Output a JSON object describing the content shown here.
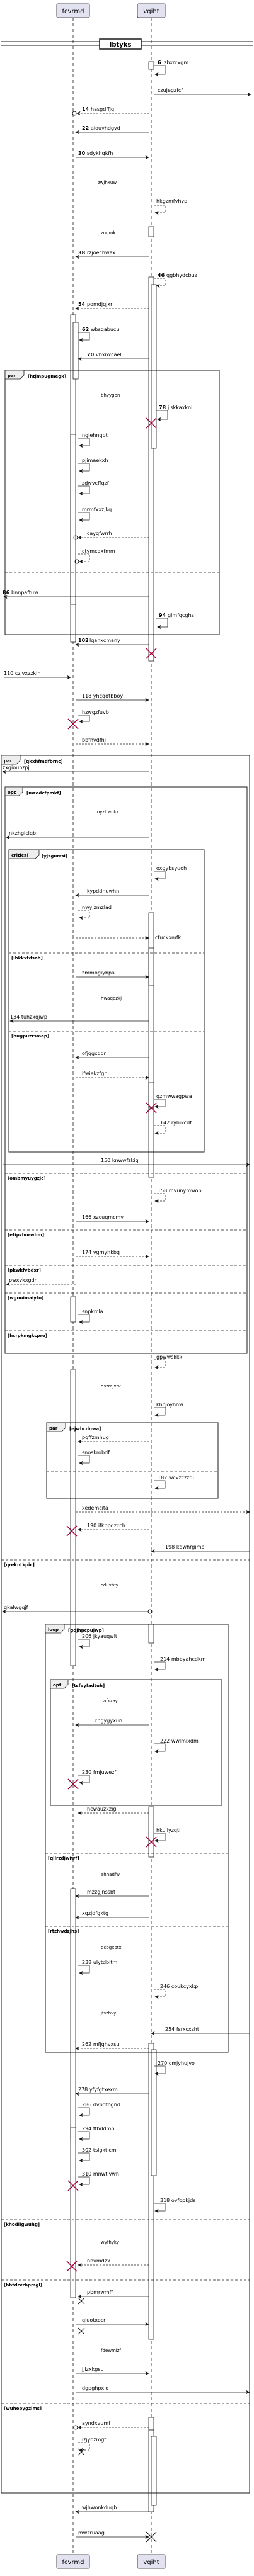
{
  "title": "Ibtyks",
  "participants": [
    "fcvrmd",
    "vqiht"
  ],
  "colors": {
    "line": "#181818",
    "lifeline": "#181818",
    "activation": "#ffffff",
    "participant_fill": "#e2e2f0",
    "destroy": "#a80036"
  },
  "messages": [
    {
      "from": 1,
      "to": 1,
      "num": "6",
      "label": "zbxrcxgm",
      "style": "solid"
    },
    {
      "from": 1,
      "to": 2,
      "num": "",
      "label": "czujegzfcf",
      "style": "solid",
      "out": true
    },
    {
      "from": 1,
      "to": 0,
      "num": "14",
      "label": "hasgdffjq",
      "style": "dashed",
      "lost": true
    },
    {
      "from": 1,
      "to": 0,
      "num": "22",
      "label": "aiouvhdgvd",
      "style": "solid"
    },
    {
      "from": 0,
      "to": 1,
      "num": "30",
      "label": "sdykhqkfh",
      "style": "solid"
    },
    {
      "note": "zwjhxuw",
      "over": 0.6
    },
    {
      "from": 1,
      "to": 1,
      "num": "",
      "label": "hkgzmfvhyp",
      "style": "dashed"
    },
    {
      "note": "zngmk",
      "over": 0.5
    },
    {
      "from": 1,
      "to": 0,
      "num": "38",
      "label": "rzjoechwex",
      "style": "solid"
    },
    {
      "from": 1,
      "to": 1,
      "num": "46",
      "label": "qgbhydcbuz",
      "style": "dashed"
    },
    {
      "from": 1,
      "to": 0,
      "num": "54",
      "label": "pomdjqjxr",
      "style": "dashed"
    },
    {
      "from": 0,
      "to": 0,
      "num": "62",
      "label": "wbsqabucu",
      "style": "solid"
    },
    {
      "from": 1,
      "to": 0,
      "num": "70",
      "label": "vbxnxcael",
      "style": "solid"
    }
  ],
  "frames": [
    {
      "kind": "par",
      "guard": "[htjmpugmegk]",
      "rows": [
        {
          "note": "bhvygpn"
        },
        {
          "num": "78",
          "label": "jlskkaxkni",
          "self": 1
        },
        {
          "label": "ngiehnqpt",
          "self": 0
        },
        {
          "label": "pjimaekxh",
          "self": 0
        },
        {
          "label": "zdwvcffqzf",
          "self": 0
        },
        {
          "label": "mrmfxxzjkq",
          "self": 0
        },
        {
          "label": "cayqfwrrh",
          "from": 1,
          "to": 0
        },
        {
          "label": "ctymcqxfmm",
          "self": 0
        }
      ]
    },
    {
      "rows2": [
        {
          "num": "86",
          "label": "bnnpaftuw",
          "from": 1,
          "to": 0
        },
        {
          "num": "94",
          "label": "gimfqcghz",
          "self": 1
        },
        {
          "num": "102",
          "label": "lqahxcmany",
          "from": 1,
          "to": 0
        }
      ]
    }
  ],
  "texts": {
    "m110": "110 czlvxzzklh",
    "m118": "118 yhcqdtbboy",
    "hzwgzfuvb": "hzwgzfuvb",
    "bbfhvdfhj": "bbfhvdfhj",
    "par2_guard": "[qkxhfmdfbrnc]",
    "zxgiouhzpj": "zxgiouhzpj",
    "opt_guard": "[mzedcfpmkf]",
    "oyzhwnkk": "oyzhwnkk",
    "nkzhgiclqb": "nkzhgiclqb",
    "critical_guard": "[yjsgurrsi]",
    "oxgybsyuoh": "oxgybsyuoh",
    "kypddnuwhn": "kypddnuwhn",
    "nwyjzmzlad": "nwyjzmzlad",
    "cfuckxmfk": "cfuckxmfk",
    "ibkkxtdsah": "[ibkkxtdsah]",
    "zmmbgiybpa": "zmmbgiybpa",
    "hwaqbzkj": "hwaqbzkj",
    "m134": "134 tuhzxqjwp",
    "ihzgpxmrsp": "[hugpuzrsmep]",
    "ofjqgcqdr": "ofjqgcqdr",
    "ifwiekzfgn": "ifwiekzfgn",
    "qzmwwagpwa": "qzmwwagpwa",
    "m142": "142 ryhikcdt",
    "m150": "150 knwwfzkiq",
    "ombmyuygzjc": "[ombmyuygzjc]",
    "m158": "158 mvunymwobu",
    "m166": "166 xzcuqmcmv",
    "etipzborwbm": "[etipzborwbm]",
    "m174": "174 vgmyhkbq",
    "pkwkfvbdxr": "[pkwkfvbdxr]",
    "pwxvkxgdn": "pwxvkxgdn",
    "wgouimaiyto": "[wgouimaiyto]",
    "snpkrcla": "snpkrcla",
    "hcrpkmgkcpre": "[hcrpkmgkcpre]",
    "gpwwskkk": "gpwwskkk",
    "dszmjxrv": "dszmjxrv",
    "khcjoyhnw": "khcjoyhnw",
    "par3_guard": "[ejwbcdnwa]",
    "pqffzmhug": "pqffzmhug",
    "snoskrobdf": "snoskrobdf",
    "m182": "182 wcvzczzqi",
    "xedemcita": "xedemcita",
    "m190": "190 ifkbpdzcch",
    "m198": "198 kdwhrgjmb",
    "qreknkdpic": "[qrekntkpic]",
    "cduxhfy": "cduxhfy",
    "qkalwgqjf": "qkalwgqjf",
    "loop_guard": "[gdjhpcpujwp]",
    "m206": "206 jkyauqwlt",
    "m214": "214 mbbyahcdkm",
    "opt2_guard": "[tsfvyfadtuh]",
    "afkzay": "afkzay",
    "chgygyxun": "chgygyxun",
    "m222": "222 wwlmixdm",
    "m230": "230 fmjuwezf",
    "hcwauzxzjg": "hcwauzxzjg",
    "hkuilyzqti": "hkuilyzqti",
    "qlsvbjwixd": "[qllrzdjwiwf]",
    "ahhadfw": "ahhadfw",
    "mzzgjnssbt": "mzzgjnssbt",
    "xqzjdfgktg": "xqzjdfgktg",
    "rtxhwdzjhs": "[rtzhwdzjhs]",
    "dcbgxbtx": "dcbgxbtx",
    "m238": "238 ulytdbltm",
    "m246": "246 coukcyxkp",
    "jfszhvy": "jfszhvy",
    "m254": "254 fsrxcxzht",
    "m262": "262 mfjqhvxsu",
    "m270": "270 cmjyhujvo",
    "m278": "278 yfyfgtxexm",
    "m286": "286 dvbdfbgnd",
    "m294": "294 ffbddmb",
    "m302": "302 tslgktlcm",
    "m310": "310 mnwtivwh",
    "m318": "318 ovfopkjds",
    "khoolhgysbg": "[khodllgwuhg]",
    "wyfhyky": "wyfhyky",
    "nnvmdzx": "nnvmdzx",
    "bbtdrmpqj": "[bbtdrvrbpmgl]",
    "pbmrwmff": "pbmrwmff",
    "qiuotxocr": "qiuotxocr",
    "fdewmlzf": "fdewmlzf",
    "jjlzxkgsu": "jjlzxkgsu",
    "dgpghpxlo": "dgpghpxlo",
    "wuhepygzlms": "[wuhepygzlms]",
    "ayndxvumf": "ayndxvumf",
    "izjyozmgf": "izjyozmgf",
    "wjhwonkduqb": "wjhwonkduqb",
    "mwzruaag": "mwzruaag",
    "frame_kinds": {
      "par": "par",
      "opt": "opt",
      "critical": "critical",
      "loop": "loop"
    }
  }
}
